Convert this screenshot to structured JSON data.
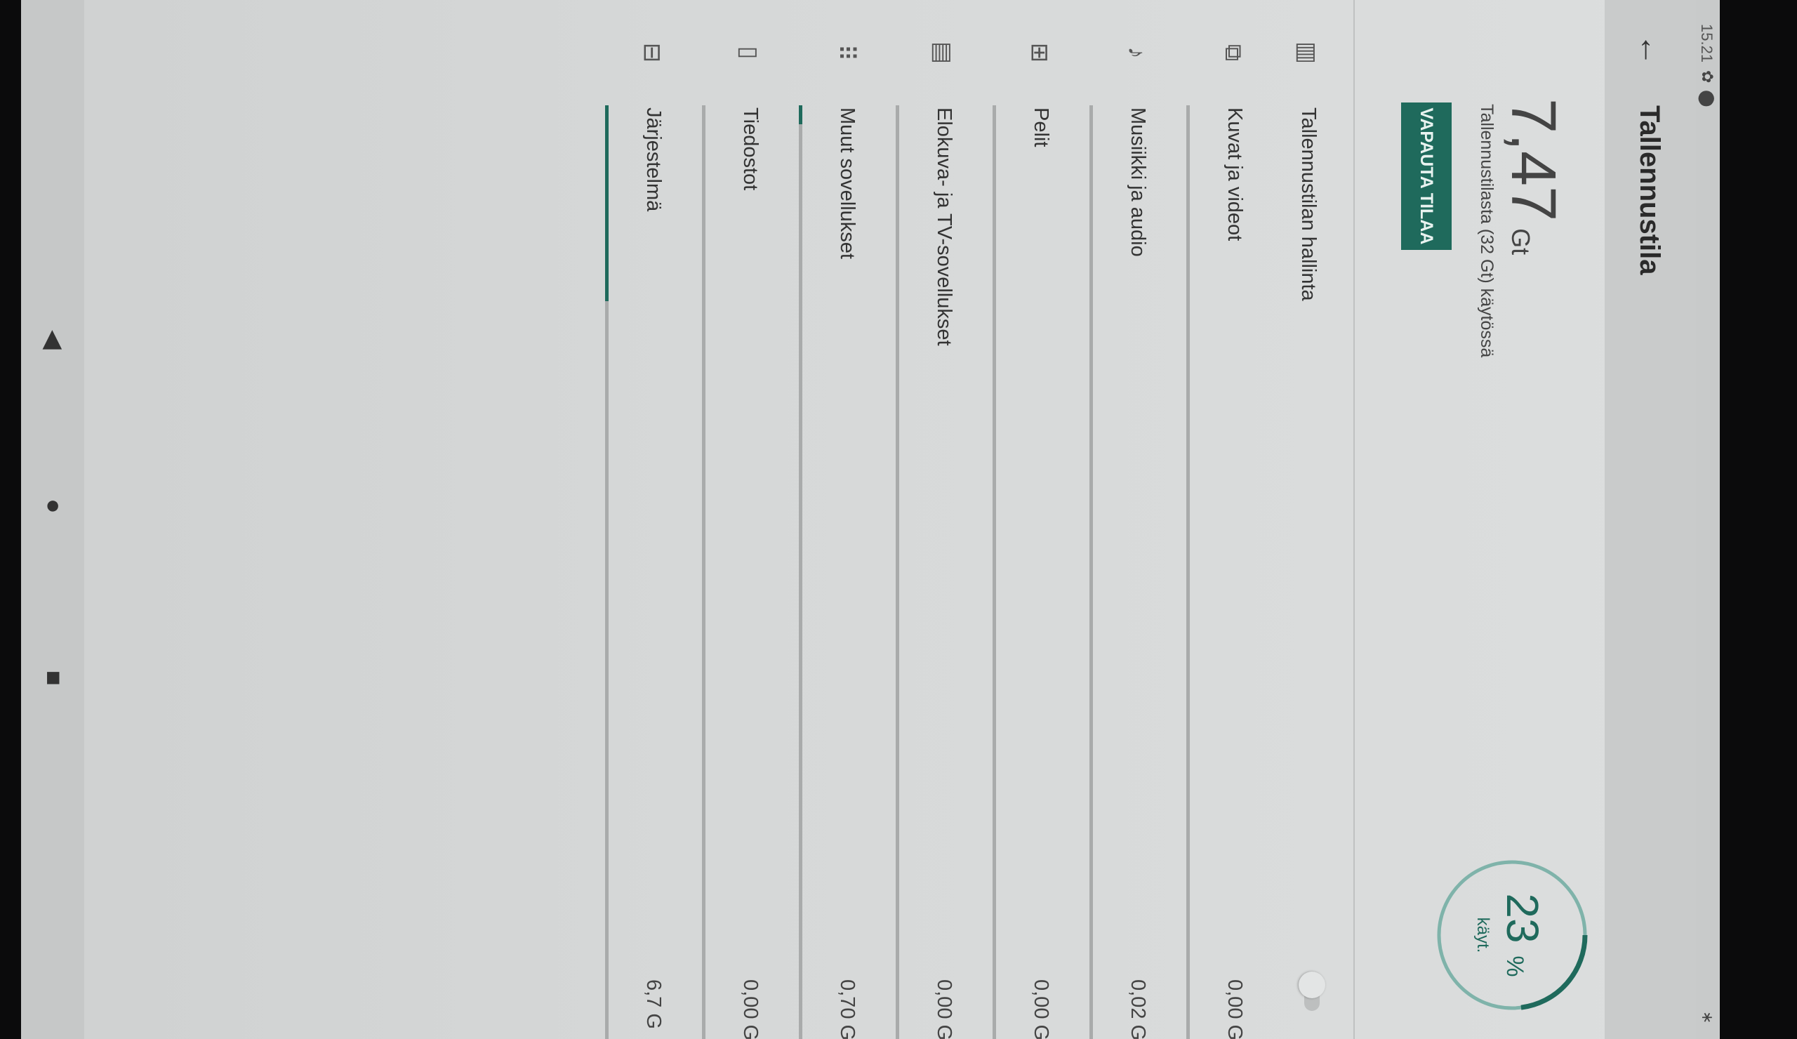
{
  "status_bar": {
    "time": "15.21",
    "icons": [
      "settings-icon",
      "location-icon",
      "bluetooth-icon"
    ]
  },
  "app_bar": {
    "title": "Tallennustila",
    "back_icon": "arrow-left-icon"
  },
  "summary": {
    "used_value": "7,47",
    "used_unit": "Gt",
    "subtitle": "Tallennustilasta (32 Gt) käytössä",
    "free_button": "VAPAUTA TILAA",
    "gauge_percent": "23",
    "gauge_percent_sign": "%",
    "gauge_label": "käyt.",
    "gauge_fraction": 0.23
  },
  "accent_color": "#1f6a5c",
  "storage_manager": {
    "label": "Tallennustilan hallinta",
    "icon": "storage-manager-icon",
    "enabled": false
  },
  "categories": [
    {
      "label": "Kuvat ja videot",
      "value": "0,00 G",
      "icon": "photos-icon",
      "fraction": 0.0
    },
    {
      "label": "Musiikki ja audio",
      "value": "0,02 G",
      "icon": "music-icon",
      "fraction": 0.0
    },
    {
      "label": "Pelit",
      "value": "0,00 G",
      "icon": "games-icon",
      "fraction": 0.0
    },
    {
      "label": "Elokuva- ja TV-sovellukset",
      "value": "0,00 G",
      "icon": "movies-icon",
      "fraction": 0.0
    },
    {
      "label": "Muut sovellukset",
      "value": "0,70 G",
      "icon": "apps-icon",
      "fraction": 0.02
    },
    {
      "label": "Tiedostot",
      "value": "0,00 G",
      "icon": "files-icon",
      "fraction": 0.0
    },
    {
      "label": "Järjestelmä",
      "value": "6,7 G",
      "icon": "system-icon",
      "fraction": 0.21
    }
  ],
  "nav_bar": {
    "back": "nav-back-icon",
    "home": "nav-home-icon",
    "recents": "nav-recents-icon"
  }
}
